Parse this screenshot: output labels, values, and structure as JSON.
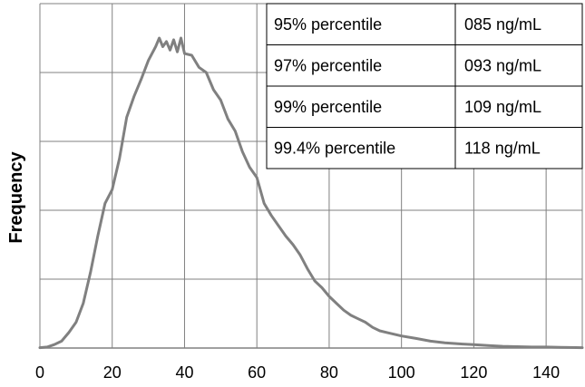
{
  "chart_data": {
    "type": "line",
    "title": "",
    "xlabel": "",
    "ylabel": "Frequency",
    "xlim": [
      0,
      150
    ],
    "ylim": [
      0,
      100
    ],
    "xticks": [
      0,
      20,
      40,
      60,
      80,
      100,
      120,
      140
    ],
    "yticks": [
      0,
      20,
      40,
      60,
      80,
      100
    ],
    "x_tick_labels": [
      "0",
      "20",
      "40",
      "60",
      "80",
      "100",
      "120",
      "140"
    ],
    "grid": true,
    "legend": "none",
    "colors": {
      "line": "#808080",
      "grid": "#808080",
      "table_border": "#000000"
    },
    "series": [
      {
        "x": [
          0,
          2,
          4,
          6,
          8,
          10,
          12,
          14,
          16,
          18,
          20,
          22,
          24,
          26,
          28,
          30,
          32,
          33,
          34,
          35,
          36,
          37,
          38,
          39,
          40,
          42,
          44,
          46,
          48,
          50,
          52,
          54,
          56,
          58,
          60,
          62,
          64,
          66,
          68,
          70,
          72,
          74,
          76,
          78,
          80,
          82,
          84,
          86,
          88,
          90,
          92,
          94,
          96,
          98,
          100,
          104,
          108,
          112,
          116,
          120,
          124,
          128,
          132,
          136,
          140,
          144,
          150
        ],
        "values": [
          0.1,
          0.3,
          1.0,
          2.0,
          4.5,
          7.5,
          13.0,
          22.0,
          32.5,
          42.0,
          46.0,
          55.0,
          67.0,
          73.0,
          78.0,
          83.5,
          87.5,
          90.0,
          87.5,
          89.0,
          86.5,
          89.5,
          86.0,
          90.0,
          85.5,
          85.0,
          81.5,
          80.0,
          75.0,
          72.0,
          66.5,
          63.0,
          57.0,
          52.5,
          49.5,
          42.0,
          38.5,
          35.5,
          32.5,
          30.0,
          27.0,
          23.0,
          19.5,
          17.5,
          15.0,
          13.0,
          11.0,
          9.5,
          8.5,
          7.5,
          6.0,
          5.0,
          4.5,
          4.0,
          3.5,
          2.8,
          2.0,
          1.5,
          1.2,
          1.0,
          0.7,
          0.5,
          0.4,
          0.3,
          0.3,
          0.2,
          0.1
        ]
      }
    ],
    "table": {
      "rows": [
        {
          "label": "95% percentile",
          "value": "085 ng/mL"
        },
        {
          "label": "97% percentile",
          "value": "093 ng/mL"
        },
        {
          "label": "99% percentile",
          "value": "109 ng/mL"
        },
        {
          "label": "99.4% percentile",
          "value": "118 ng/mL"
        }
      ]
    }
  }
}
